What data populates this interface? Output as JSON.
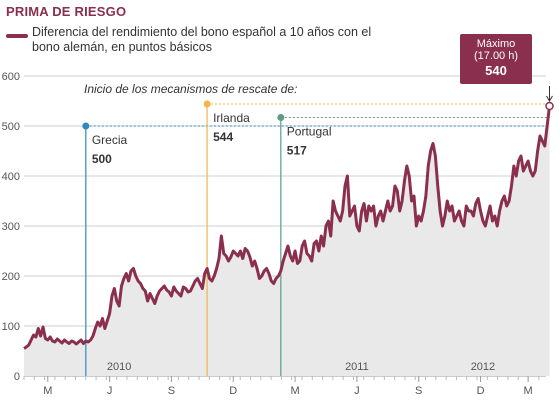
{
  "chart_data": {
    "type": "line",
    "title": "PRIMA DE RIESGO",
    "series": [
      {
        "name": "Diferencia del rendimiento del bono español a 10 años con el bono alemán, en puntos básicos",
        "color": "#8b2f4e",
        "values": [
          55,
          58,
          62,
          72,
          82,
          78,
          95,
          80,
          98,
          75,
          72,
          78,
          70,
          68,
          74,
          70,
          66,
          72,
          68,
          65,
          70,
          68,
          64,
          68,
          72,
          65,
          70,
          68,
          72,
          80,
          95,
          108,
          100,
          115,
          95,
          110,
          125,
          160,
          175,
          150,
          140,
          180,
          195,
          205,
          190,
          210,
          215,
          200,
          190,
          185,
          175,
          170,
          150,
          165,
          155,
          145,
          160,
          170,
          175,
          180,
          172,
          168,
          160,
          178,
          170,
          165,
          160,
          178,
          175,
          168,
          170,
          180,
          190,
          195,
          185,
          175,
          205,
          215,
          195,
          190,
          200,
          215,
          235,
          280,
          245,
          240,
          230,
          238,
          250,
          245,
          240,
          250,
          235,
          255,
          250,
          238,
          220,
          230,
          215,
          195,
          200,
          210,
          215,
          205,
          190,
          185,
          195,
          200,
          210,
          230,
          245,
          260,
          240,
          230,
          250,
          225,
          230,
          260,
          270,
          245,
          240,
          230,
          265,
          270,
          250,
          280,
          260,
          300,
          310,
          280,
          350,
          330,
          320,
          310,
          330,
          380,
          400,
          320,
          330,
          340,
          300,
          290,
          330,
          345,
          310,
          340,
          330,
          340,
          300,
          320,
          330,
          310,
          330,
          350,
          330,
          340,
          380,
          370,
          330,
          350,
          390,
          420,
          400,
          350,
          360,
          300,
          320,
          310,
          330,
          360,
          420,
          450,
          465,
          440,
          380,
          330,
          300,
          320,
          350,
          330,
          340,
          310,
          320,
          330,
          310,
          300,
          340,
          330,
          330,
          320,
          345,
          355,
          330,
          310,
          300,
          320,
          340,
          310,
          320,
          300,
          330,
          350,
          360,
          340,
          350,
          380,
          420,
          400,
          430,
          440,
          410,
          420,
          430,
          410,
          400,
          410,
          450,
          480,
          470,
          460,
          500,
          540
        ]
      }
    ],
    "xlim": [
      0,
      217
    ],
    "ylim": [
      0,
      600
    ],
    "yticks": [
      0,
      100,
      200,
      300,
      400,
      500,
      600
    ],
    "xticks": [
      {
        "label": "M",
        "pos": 10
      },
      {
        "label": "J",
        "pos": 36
      },
      {
        "label": "S",
        "pos": 62
      },
      {
        "label": "D",
        "pos": 88
      },
      {
        "label": "M",
        "pos": 114
      },
      {
        "label": "J",
        "pos": 140
      },
      {
        "label": "S",
        "pos": 166
      },
      {
        "label": "D",
        "pos": 192
      },
      {
        "label": "M",
        "pos": 212
      }
    ],
    "year_labels": [
      {
        "label": "2010",
        "pos": 40
      },
      {
        "label": "2011",
        "pos": 140
      },
      {
        "label": "2012",
        "pos": 193
      }
    ],
    "events": [
      {
        "name": "Grecia",
        "value": "500",
        "pos": 26,
        "level": 500,
        "color": "#2e8ab8"
      },
      {
        "name": "Irlanda",
        "value": "544",
        "pos": 77,
        "level": 544,
        "color": "#f2b54a"
      },
      {
        "name": "Portugal",
        "value": "517",
        "pos": 108,
        "level": 517,
        "color": "#5f9b85"
      }
    ],
    "annotation": "Inicio de los mecanismos de rescate de:",
    "max": {
      "label": "Máximo",
      "time": "(17.00 h)",
      "value": "540"
    },
    "grid": true
  }
}
